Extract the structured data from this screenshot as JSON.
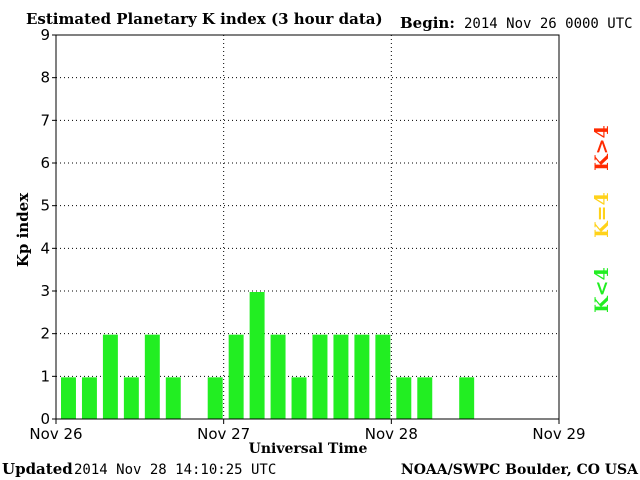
{
  "header": {
    "title": "Estimated Planetary K index (3 hour data)",
    "begin_label": "Begin:",
    "begin_value": "2014 Nov 26 0000 UTC"
  },
  "footer": {
    "updated_label": "Updated",
    "updated_value": "2014 Nov 28 14:10:25 UTC",
    "source": "NOAA/SWPC Boulder, CO USA"
  },
  "legend": {
    "high": {
      "label": "K>4",
      "color": "#ff2a00"
    },
    "equal": {
      "label": "K=4",
      "color": "#ffd21a"
    },
    "low": {
      "label": "K<4",
      "color": "#22ee22"
    }
  },
  "chart_data": {
    "type": "bar",
    "title": "Estimated Planetary K index (3 hour data)",
    "xlabel": "Universal Time",
    "ylabel": "Kp index",
    "ylim": [
      0,
      9
    ],
    "yticks": [
      "0",
      "1",
      "2",
      "3",
      "4",
      "5",
      "6",
      "7",
      "8",
      "9"
    ],
    "xticks": [
      "Nov 26",
      "Nov 27",
      "Nov 28",
      "Nov 29"
    ],
    "slots_total": 24,
    "grid": true,
    "bar_color": "#22ee22",
    "values": [
      1,
      1,
      2,
      1,
      2,
      1,
      0,
      1,
      2,
      3,
      2,
      1,
      2,
      2,
      2,
      2,
      1,
      1,
      0,
      1
    ]
  }
}
